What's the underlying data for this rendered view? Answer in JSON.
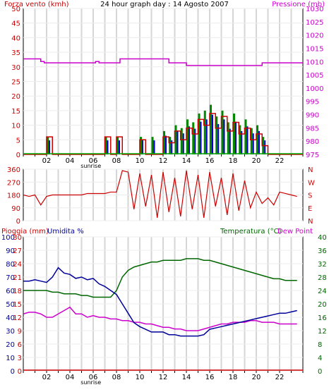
{
  "chart_data": [
    {
      "type": "line",
      "title": "24 hour graph day : 14 Agosto 2007",
      "ylabel_left": "Forza vento (kmh)",
      "ylabel_right": "Pressione (mb)",
      "x_ticks": [
        "02",
        "04",
        "06",
        "08",
        "10",
        "12",
        "14",
        "16",
        "18",
        "20",
        "22"
      ],
      "sunrise_label": "sunrise",
      "ylim_left": [
        0,
        50
      ],
      "y_ticks_left": [
        "0",
        "5",
        "10",
        "15",
        "20",
        "25",
        "30",
        "35",
        "40",
        "45",
        "50"
      ],
      "ylim_right": [
        975,
        1030
      ],
      "y_ticks_right": [
        "975",
        "980",
        "985",
        "990",
        "995",
        "1000",
        "1005",
        "1010",
        "1015",
        "1020",
        "1025",
        "1030"
      ],
      "pressure": {
        "x": [
          0,
          1.5,
          1.5,
          1.8,
          1.8,
          6.2,
          6.2,
          6.5,
          6.5,
          8.3,
          8.3,
          12.5,
          12.5,
          14,
          14,
          20.5,
          20.5,
          24
        ],
        "y": [
          1011,
          1011,
          1010,
          1010,
          1009.5,
          1009.5,
          1010,
          1010,
          1009.5,
          1009.5,
          1011,
          1011,
          1009.5,
          1009.5,
          1008.5,
          1008.5,
          1009.5,
          1009.5
        ]
      },
      "wind": {
        "x": [
          0,
          0.5,
          1,
          1.5,
          2,
          2.5,
          3,
          3.5,
          4,
          4.5,
          5,
          5.5,
          6,
          6.5,
          7,
          7.5,
          8,
          8.5,
          9,
          9.5,
          10,
          10.5,
          11,
          11.5,
          12,
          12.5,
          13,
          13.5,
          14,
          14.5,
          15,
          15.5,
          16,
          16.5,
          17,
          17.5,
          18,
          18.5,
          19,
          19.5,
          20,
          20.5,
          21,
          21.5,
          22,
          22.5,
          23,
          23.5
        ],
        "y": [
          0,
          0,
          0,
          0,
          6,
          0,
          0,
          0,
          0,
          0,
          0,
          0,
          0,
          0,
          6,
          0,
          6,
          0,
          0,
          0,
          5,
          0,
          0,
          0,
          6,
          4,
          8,
          5,
          9,
          7,
          12,
          10,
          14,
          9,
          13,
          8,
          11,
          7,
          9,
          5,
          7,
          3,
          0,
          0,
          0,
          0,
          0,
          0
        ]
      },
      "gust": {
        "x": [
          0,
          0.5,
          1,
          1.5,
          2,
          2.5,
          3,
          3.5,
          4,
          4.5,
          5,
          5.5,
          6,
          6.5,
          7,
          7.5,
          8,
          8.5,
          9,
          9.5,
          10,
          10.5,
          11,
          11.5,
          12,
          12.5,
          13,
          13.5,
          14,
          14.5,
          15,
          15.5,
          16,
          16.5,
          17,
          17.5,
          18,
          18.5,
          19,
          19.5,
          20,
          20.5,
          21,
          21.5,
          22,
          22.5,
          23,
          23.5
        ],
        "y": [
          0,
          0,
          0,
          0,
          6,
          0,
          0,
          0,
          0,
          0,
          0,
          0,
          0,
          0,
          6,
          0,
          6,
          0,
          0,
          0,
          6,
          0,
          6,
          0,
          8,
          6,
          10,
          9,
          12,
          11,
          14,
          15,
          17,
          13,
          15,
          11,
          14,
          10,
          12,
          9,
          10,
          6,
          0,
          0,
          0,
          0,
          0,
          0
        ]
      }
    },
    {
      "type": "scatter",
      "ylabel_right": [
        "N",
        "W",
        "S",
        "E",
        "N"
      ],
      "y_ticks_left": [
        "0",
        "90",
        "180",
        "270",
        "360"
      ],
      "ylim": [
        0,
        360
      ],
      "direction": {
        "x": [
          0,
          0.5,
          1,
          1.5,
          2,
          2.5,
          3,
          3.5,
          4,
          4.5,
          5,
          5.5,
          6,
          6.5,
          7,
          7.5,
          8,
          8.5,
          9,
          9.5,
          10,
          10.5,
          11,
          11.5,
          12,
          12.5,
          13,
          13.5,
          14,
          14.5,
          15,
          15.5,
          16,
          16.5,
          17,
          17.5,
          18,
          18.5,
          19,
          19.5,
          20,
          20.5,
          21,
          21.5,
          22,
          22.5,
          23,
          23.5
        ],
        "y": [
          180,
          170,
          180,
          110,
          170,
          180,
          180,
          180,
          180,
          180,
          180,
          190,
          190,
          190,
          190,
          200,
          200,
          350,
          340,
          80,
          330,
          100,
          320,
          20,
          340,
          60,
          300,
          30,
          350,
          80,
          320,
          20,
          340,
          100,
          300,
          40,
          330,
          70,
          280,
          90,
          200,
          120,
          160,
          110,
          200,
          190,
          180,
          170
        ]
      }
    },
    {
      "type": "line",
      "ylabel_left": [
        "Pioggia (mm)",
        "Umidita %"
      ],
      "ylabel_right": [
        "Temperatura (°C)",
        "Dew Point"
      ],
      "ylim_left_rain": [
        0,
        30
      ],
      "y_ticks_rain": [
        "0",
        "3",
        "6",
        "9",
        "12",
        "15",
        "18",
        "21",
        "24",
        "27",
        "30"
      ],
      "ylim_left_hum": [
        0,
        100
      ],
      "y_ticks_hum": [
        "0",
        "10",
        "20",
        "30",
        "40",
        "50",
        "60",
        "70",
        "80",
        "90",
        "100"
      ],
      "ylim_right": [
        0,
        40
      ],
      "y_ticks_right": [
        "0",
        "4",
        "8",
        "12",
        "16",
        "20",
        "24",
        "28",
        "32",
        "36",
        "40"
      ],
      "humidity": {
        "x": [
          0,
          0.5,
          1,
          1.5,
          2,
          2.5,
          3,
          3.5,
          4,
          4.5,
          5,
          5.5,
          6,
          6.5,
          7,
          7.5,
          8,
          8.5,
          9,
          9.5,
          10,
          10.5,
          11,
          11.5,
          12,
          12.5,
          13,
          13.5,
          14,
          14.5,
          15,
          15.5,
          16,
          16.5,
          17,
          17.5,
          18,
          18.5,
          19,
          19.5,
          20,
          20.5,
          21,
          21.5,
          22,
          22.5,
          23,
          23.5
        ],
        "y": [
          67,
          67,
          68,
          67,
          66,
          70,
          77,
          73,
          72,
          69,
          70,
          68,
          69,
          65,
          63,
          60,
          57,
          50,
          43,
          36,
          33,
          31,
          29,
          29,
          29,
          27,
          27,
          26,
          26,
          26,
          26,
          27,
          31,
          32,
          33,
          34,
          35,
          36,
          37,
          38,
          39,
          40,
          41,
          42,
          43,
          43,
          44,
          45
        ]
      },
      "rain": {
        "x": [
          0,
          24
        ],
        "y": [
          0,
          0
        ]
      },
      "temperature": {
        "x": [
          0,
          0.5,
          1,
          1.5,
          2,
          2.5,
          3,
          3.5,
          4,
          4.5,
          5,
          5.5,
          6,
          6.5,
          7,
          7.5,
          8,
          8.5,
          9,
          9.5,
          10,
          10.5,
          11,
          11.5,
          12,
          12.5,
          13,
          13.5,
          14,
          14.5,
          15,
          15.5,
          16,
          16.5,
          17,
          17.5,
          18,
          18.5,
          19,
          19.5,
          20,
          20.5,
          21,
          21.5,
          22,
          22.5,
          23,
          23.5
        ],
        "y": [
          24,
          24,
          24,
          24,
          24,
          23.5,
          23.5,
          23,
          23,
          23,
          22.5,
          22.5,
          22,
          22,
          22,
          22,
          24,
          28,
          30,
          31,
          31.5,
          32,
          32.5,
          32.5,
          33,
          33,
          33,
          33,
          33.5,
          33.5,
          33.5,
          33,
          33,
          32.5,
          32,
          31.5,
          31,
          30.5,
          30,
          29.5,
          29,
          28.5,
          28,
          27.5,
          27.5,
          27,
          27,
          27
        ]
      },
      "dewpoint": {
        "x": [
          0,
          0.5,
          1,
          1.5,
          2,
          2.5,
          3,
          3.5,
          4,
          4.5,
          5,
          5.5,
          6,
          6.5,
          7,
          7.5,
          8,
          8.5,
          9,
          9.5,
          10,
          10.5,
          11,
          11.5,
          12,
          12.5,
          13,
          13.5,
          14,
          14.5,
          15,
          15.5,
          16,
          16.5,
          17,
          17.5,
          18,
          18.5,
          19,
          19.5,
          20,
          20.5,
          21,
          21.5,
          22,
          22.5,
          23,
          23.5
        ],
        "y": [
          17,
          17.5,
          17.5,
          17,
          16,
          16,
          17,
          18,
          19,
          17,
          17,
          16,
          16.5,
          16,
          16,
          15.5,
          15.5,
          15,
          15,
          14.5,
          14.5,
          14,
          14,
          13.5,
          13,
          13,
          12.5,
          12.5,
          12,
          12,
          12,
          12.5,
          13,
          13.5,
          14,
          14,
          14.5,
          14.5,
          14.5,
          15,
          15,
          14.5,
          14.5,
          14.5,
          14,
          14,
          14,
          14
        ]
      },
      "x_ticks": [
        "02",
        "04",
        "06",
        "08",
        "10",
        "12",
        "14",
        "16",
        "18",
        "20",
        "22"
      ],
      "sunrise_label": "sunrise"
    }
  ],
  "colors": {
    "wind": "#cc0000",
    "gust": "#0000cc",
    "pressure": "#cc00cc",
    "direction": "#cc0000",
    "humidity": "#000099",
    "temperature": "#006600",
    "dewpoint": "#cc00cc",
    "rain": "#cc0000",
    "gust_fill": "#008800"
  }
}
